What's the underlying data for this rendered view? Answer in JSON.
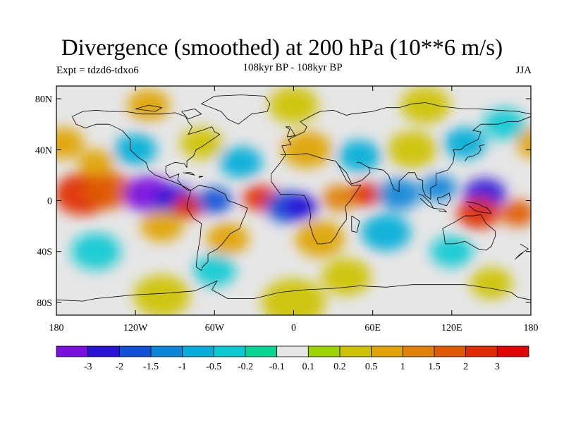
{
  "title": "Divergence (smoothed) at 200 hPa (10**6 m/s)",
  "subtitle": "108kyr BP - 108kyr BP",
  "experiment": "Expt = tdzd6-tdxo6",
  "season": "JJA",
  "map": {
    "projection": "cylindrical-equidistant",
    "lon_range": [
      -180,
      180
    ],
    "lat_range": [
      -90,
      90
    ],
    "x_ticks": [
      {
        "value": -180,
        "label": "180"
      },
      {
        "value": -120,
        "label": "120W"
      },
      {
        "value": -60,
        "label": "60W"
      },
      {
        "value": 0,
        "label": "0"
      },
      {
        "value": 60,
        "label": "60E"
      },
      {
        "value": 120,
        "label": "120E"
      },
      {
        "value": 180,
        "label": "180"
      }
    ],
    "y_ticks": [
      {
        "value": 80,
        "label": "80N"
      },
      {
        "value": 40,
        "label": "40N"
      },
      {
        "value": 0,
        "label": "0"
      },
      {
        "value": -40,
        "label": "40S"
      },
      {
        "value": -80,
        "label": "80S"
      }
    ]
  },
  "colorbar": {
    "levels": [
      "-3",
      "-2",
      "-1.5",
      "-1",
      "-0.5",
      "-0.2",
      "-0.1",
      "0.1",
      "0.2",
      "0.5",
      "1",
      "1.5",
      "2",
      "3"
    ],
    "colors": [
      "#7a10e0",
      "#2a14d8",
      "#1250d6",
      "#0e86d8",
      "#04aed8",
      "#0ccad2",
      "#06d494",
      "#e6e6e6",
      "#9cd404",
      "#cec204",
      "#e0a406",
      "#e08006",
      "#e05a06",
      "#e02c06",
      "#e00404"
    ]
  },
  "field": [
    {
      "lon": -160,
      "lat": 5,
      "v": 2.5,
      "r": 16
    },
    {
      "lon": -140,
      "lat": 8,
      "v": 1.6,
      "r": 14
    },
    {
      "lon": -110,
      "lat": 5,
      "v": -3,
      "r": 14
    },
    {
      "lon": -90,
      "lat": 0,
      "v": -2,
      "r": 12
    },
    {
      "lon": -80,
      "lat": -5,
      "v": 2.2,
      "r": 9
    },
    {
      "lon": -60,
      "lat": 0,
      "v": -1.6,
      "r": 10
    },
    {
      "lon": -25,
      "lat": 2,
      "v": 2.6,
      "r": 10
    },
    {
      "lon": -5,
      "lat": -5,
      "v": -1.6,
      "r": 12
    },
    {
      "lon": 5,
      "lat": -5,
      "v": -2.5,
      "r": 10
    },
    {
      "lon": 35,
      "lat": 2,
      "v": 1.2,
      "r": 10
    },
    {
      "lon": 55,
      "lat": 5,
      "v": 2.6,
      "r": 9
    },
    {
      "lon": 80,
      "lat": 5,
      "v": -1.2,
      "r": 12
    },
    {
      "lon": 110,
      "lat": 10,
      "v": -1.3,
      "r": 10
    },
    {
      "lon": 145,
      "lat": 5,
      "v": -2.2,
      "r": 12
    },
    {
      "lon": 140,
      "lat": -10,
      "v": 2.5,
      "r": 12
    },
    {
      "lon": 170,
      "lat": -10,
      "v": 1.6,
      "r": 10
    },
    {
      "lon": -175,
      "lat": 45,
      "v": 0.6,
      "r": 12
    },
    {
      "lon": -150,
      "lat": 30,
      "v": 0.8,
      "r": 10
    },
    {
      "lon": -120,
      "lat": 40,
      "v": -0.5,
      "r": 12
    },
    {
      "lon": -70,
      "lat": 45,
      "v": 0.5,
      "r": 12
    },
    {
      "lon": -40,
      "lat": 30,
      "v": -0.6,
      "r": 12
    },
    {
      "lon": 10,
      "lat": 40,
      "v": 0.6,
      "r": 14
    },
    {
      "lon": 50,
      "lat": 35,
      "v": -0.6,
      "r": 12
    },
    {
      "lon": 90,
      "lat": 40,
      "v": 0.5,
      "r": 14
    },
    {
      "lon": 130,
      "lat": 45,
      "v": -0.5,
      "r": 12
    },
    {
      "lon": 160,
      "lat": 60,
      "v": -0.4,
      "r": 12
    },
    {
      "lon": 0,
      "lat": 75,
      "v": 0.5,
      "r": 14
    },
    {
      "lon": -110,
      "lat": 75,
      "v": 0.6,
      "r": 12
    },
    {
      "lon": 100,
      "lat": 75,
      "v": 0.4,
      "r": 14
    },
    {
      "lon": -100,
      "lat": -20,
      "v": 0.8,
      "r": 12
    },
    {
      "lon": -50,
      "lat": -30,
      "v": 0.9,
      "r": 12
    },
    {
      "lon": 20,
      "lat": -30,
      "v": 0.7,
      "r": 14
    },
    {
      "lon": 70,
      "lat": -25,
      "v": -0.6,
      "r": 14
    },
    {
      "lon": 120,
      "lat": -40,
      "v": -0.4,
      "r": 12
    },
    {
      "lon": -150,
      "lat": -40,
      "v": -0.4,
      "r": 14
    },
    {
      "lon": -60,
      "lat": -55,
      "v": -0.4,
      "r": 12
    },
    {
      "lon": 40,
      "lat": -60,
      "v": 0.3,
      "r": 14
    },
    {
      "lon": 150,
      "lat": -65,
      "v": 0.4,
      "r": 12
    },
    {
      "lon": -100,
      "lat": -75,
      "v": 0.3,
      "r": 16
    },
    {
      "lon": 0,
      "lat": -80,
      "v": 0.3,
      "r": 18
    }
  ],
  "coastlines": [
    [
      [
        -168,
        66
      ],
      [
        -160,
        70
      ],
      [
        -150,
        71
      ],
      [
        -140,
        70
      ],
      [
        -128,
        70
      ],
      [
        -115,
        68
      ],
      [
        -100,
        68
      ],
      [
        -90,
        69
      ],
      [
        -82,
        66
      ],
      [
        -80,
        62
      ],
      [
        -77,
        58
      ],
      [
        -80,
        52
      ],
      [
        -70,
        55
      ],
      [
        -62,
        58
      ],
      [
        -60,
        54
      ],
      [
        -56,
        52
      ],
      [
        -66,
        45
      ],
      [
        -70,
        42
      ],
      [
        -74,
        40
      ],
      [
        -76,
        35
      ],
      [
        -81,
        31
      ],
      [
        -81,
        26
      ],
      [
        -83,
        29
      ],
      [
        -90,
        30
      ],
      [
        -97,
        27
      ],
      [
        -97,
        22
      ],
      [
        -94,
        18
      ],
      [
        -87,
        21
      ],
      [
        -88,
        16
      ],
      [
        -84,
        11
      ],
      [
        -80,
        8
      ],
      [
        -78,
        8
      ],
      [
        -85,
        12
      ],
      [
        -92,
        15
      ],
      [
        -105,
        20
      ],
      [
        -110,
        24
      ],
      [
        -112,
        30
      ],
      [
        -118,
        34
      ],
      [
        -124,
        40
      ],
      [
        -124,
        48
      ],
      [
        -130,
        55
      ],
      [
        -140,
        60
      ],
      [
        -150,
        60
      ],
      [
        -158,
        57
      ],
      [
        -165,
        60
      ],
      [
        -168,
        66
      ]
    ],
    [
      [
        -78,
        8
      ],
      [
        -72,
        12
      ],
      [
        -62,
        10
      ],
      [
        -52,
        5
      ],
      [
        -50,
        0
      ],
      [
        -44,
        -2
      ],
      [
        -35,
        -6
      ],
      [
        -37,
        -12
      ],
      [
        -39,
        -16
      ],
      [
        -41,
        -22
      ],
      [
        -48,
        -26
      ],
      [
        -54,
        -34
      ],
      [
        -58,
        -38
      ],
      [
        -65,
        -42
      ],
      [
        -65,
        -48
      ],
      [
        -69,
        -52
      ],
      [
        -70,
        -55
      ],
      [
        -74,
        -52
      ],
      [
        -73,
        -42
      ],
      [
        -71,
        -30
      ],
      [
        -70,
        -18
      ],
      [
        -76,
        -14
      ],
      [
        -81,
        -6
      ],
      [
        -80,
        0
      ],
      [
        -78,
        8
      ]
    ],
    [
      [
        -10,
        36
      ],
      [
        -6,
        36
      ],
      [
        -9,
        43
      ],
      [
        -2,
        44
      ],
      [
        -4,
        48
      ],
      [
        2,
        51
      ],
      [
        8,
        54
      ],
      [
        10,
        58
      ],
      [
        5,
        62
      ],
      [
        14,
        67
      ],
      [
        20,
        70
      ],
      [
        30,
        71
      ],
      [
        40,
        67
      ],
      [
        44,
        68
      ],
      [
        60,
        70
      ],
      [
        70,
        73
      ],
      [
        80,
        73
      ],
      [
        90,
        76
      ],
      [
        100,
        77
      ],
      [
        112,
        74
      ],
      [
        130,
        72
      ],
      [
        140,
        72
      ],
      [
        155,
        71
      ],
      [
        170,
        70
      ],
      [
        180,
        68
      ]
    ],
    [
      [
        -17,
        15
      ],
      [
        -10,
        5
      ],
      [
        -4,
        5
      ],
      [
        8,
        4
      ],
      [
        10,
        0
      ],
      [
        12,
        -6
      ],
      [
        13,
        -12
      ],
      [
        12,
        -18
      ],
      [
        15,
        -28
      ],
      [
        18,
        -34
      ],
      [
        22,
        -34
      ],
      [
        28,
        -33
      ],
      [
        32,
        -28
      ],
      [
        35,
        -22
      ],
      [
        40,
        -15
      ],
      [
        40,
        -10
      ],
      [
        39,
        -5
      ],
      [
        43,
        0
      ],
      [
        51,
        12
      ],
      [
        44,
        12
      ],
      [
        40,
        16
      ],
      [
        34,
        28
      ],
      [
        32,
        31
      ],
      [
        22,
        33
      ],
      [
        10,
        37
      ],
      [
        0,
        36
      ],
      [
        -6,
        36
      ],
      [
        -10,
        30
      ],
      [
        -17,
        21
      ],
      [
        -17,
        15
      ]
    ],
    [
      [
        34,
        28
      ],
      [
        40,
        22
      ],
      [
        44,
        13
      ],
      [
        52,
        16
      ],
      [
        58,
        22
      ],
      [
        57,
        26
      ],
      [
        50,
        30
      ],
      [
        48,
        30
      ]
    ],
    [
      [
        57,
        26
      ],
      [
        62,
        25
      ],
      [
        68,
        24
      ],
      [
        72,
        20
      ],
      [
        76,
        9
      ],
      [
        80,
        7
      ],
      [
        80,
        15
      ],
      [
        87,
        22
      ],
      [
        92,
        22
      ],
      [
        94,
        17
      ],
      [
        98,
        16
      ],
      [
        98,
        9
      ],
      [
        100,
        4
      ],
      [
        104,
        1
      ],
      [
        104,
        10
      ],
      [
        108,
        12
      ],
      [
        108,
        21
      ],
      [
        117,
        24
      ],
      [
        121,
        30
      ],
      [
        122,
        37
      ],
      [
        121,
        40
      ],
      [
        127,
        40
      ],
      [
        130,
        43
      ],
      [
        140,
        48
      ],
      [
        142,
        54
      ],
      [
        136,
        55
      ],
      [
        142,
        60
      ],
      [
        155,
        60
      ],
      [
        162,
        62
      ],
      [
        170,
        62
      ],
      [
        180,
        66
      ]
    ],
    [
      [
        113,
        -22
      ],
      [
        114,
        -26
      ],
      [
        115,
        -34
      ],
      [
        122,
        -34
      ],
      [
        130,
        -32
      ],
      [
        135,
        -35
      ],
      [
        140,
        -38
      ],
      [
        146,
        -39
      ],
      [
        150,
        -36
      ],
      [
        153,
        -28
      ],
      [
        153,
        -24
      ],
      [
        146,
        -18
      ],
      [
        142,
        -11
      ],
      [
        136,
        -12
      ],
      [
        130,
        -12
      ],
      [
        122,
        -17
      ],
      [
        113,
        -22
      ]
    ],
    [
      [
        95,
        5
      ],
      [
        98,
        4
      ],
      [
        104,
        -2
      ],
      [
        106,
        -6
      ],
      [
        102,
        -4
      ],
      [
        96,
        2
      ]
    ],
    [
      [
        106,
        -6
      ],
      [
        114,
        -7
      ],
      [
        116,
        -9
      ],
      [
        110,
        -8
      ]
    ],
    [
      [
        109,
        2
      ],
      [
        113,
        3
      ],
      [
        118,
        6
      ],
      [
        119,
        1
      ],
      [
        116,
        -4
      ],
      [
        110,
        -2
      ],
      [
        109,
        2
      ]
    ],
    [
      [
        131,
        -1
      ],
      [
        138,
        -2
      ],
      [
        147,
        -6
      ],
      [
        150,
        -10
      ],
      [
        142,
        -9
      ],
      [
        138,
        -8
      ],
      [
        133,
        -4
      ]
    ],
    [
      [
        130,
        31
      ],
      [
        132,
        34
      ],
      [
        136,
        35
      ],
      [
        140,
        37
      ],
      [
        142,
        40
      ],
      [
        141,
        43
      ],
      [
        145,
        44
      ]
    ],
    [
      [
        -60,
        82
      ],
      [
        -40,
        83
      ],
      [
        -22,
        82
      ],
      [
        -18,
        76
      ],
      [
        -20,
        70
      ],
      [
        -32,
        68
      ],
      [
        -42,
        60
      ],
      [
        -50,
        64
      ],
      [
        -55,
        70
      ],
      [
        -70,
        76
      ],
      [
        -60,
        82
      ]
    ],
    [
      [
        -5,
        50
      ],
      [
        -3,
        56
      ],
      [
        -6,
        58
      ],
      [
        -3,
        58
      ],
      [
        0,
        53
      ],
      [
        1,
        51
      ],
      [
        -5,
        50
      ]
    ],
    [
      [
        -85,
        70
      ],
      [
        -75,
        72
      ],
      [
        -70,
        68
      ],
      [
        -80,
        64
      ],
      [
        -85,
        70
      ]
    ],
    [
      [
        -120,
        72
      ],
      [
        -110,
        75
      ],
      [
        -100,
        73
      ],
      [
        -105,
        70
      ],
      [
        -120,
        72
      ]
    ],
    [
      [
        44,
        -12
      ],
      [
        50,
        -16
      ],
      [
        48,
        -25
      ],
      [
        44,
        -24
      ],
      [
        44,
        -12
      ]
    ],
    [
      [
        172,
        -34
      ],
      [
        178,
        -38
      ],
      [
        172,
        -42
      ],
      [
        168,
        -46
      ],
      [
        174,
        -41
      ]
    ],
    [
      [
        -180,
        -78
      ],
      [
        -160,
        -79
      ],
      [
        -150,
        -77
      ],
      [
        -120,
        -74
      ],
      [
        -100,
        -73
      ],
      [
        -75,
        -71
      ],
      [
        -62,
        -65
      ],
      [
        -58,
        -63
      ],
      [
        -62,
        -70
      ],
      [
        -50,
        -77
      ],
      [
        -30,
        -77
      ],
      [
        -10,
        -72
      ],
      [
        10,
        -70
      ],
      [
        30,
        -69
      ],
      [
        50,
        -67
      ],
      [
        70,
        -68
      ],
      [
        90,
        -66
      ],
      [
        110,
        -66
      ],
      [
        130,
        -66
      ],
      [
        150,
        -69
      ],
      [
        165,
        -72
      ],
      [
        170,
        -76
      ],
      [
        180,
        -78
      ]
    ],
    [
      [
        -82,
        22
      ],
      [
        -78,
        22
      ],
      [
        -75,
        20
      ],
      [
        -84,
        22
      ]
    ],
    [
      [
        -72,
        19
      ],
      [
        -69,
        19
      ],
      [
        -72,
        18
      ]
    ]
  ]
}
